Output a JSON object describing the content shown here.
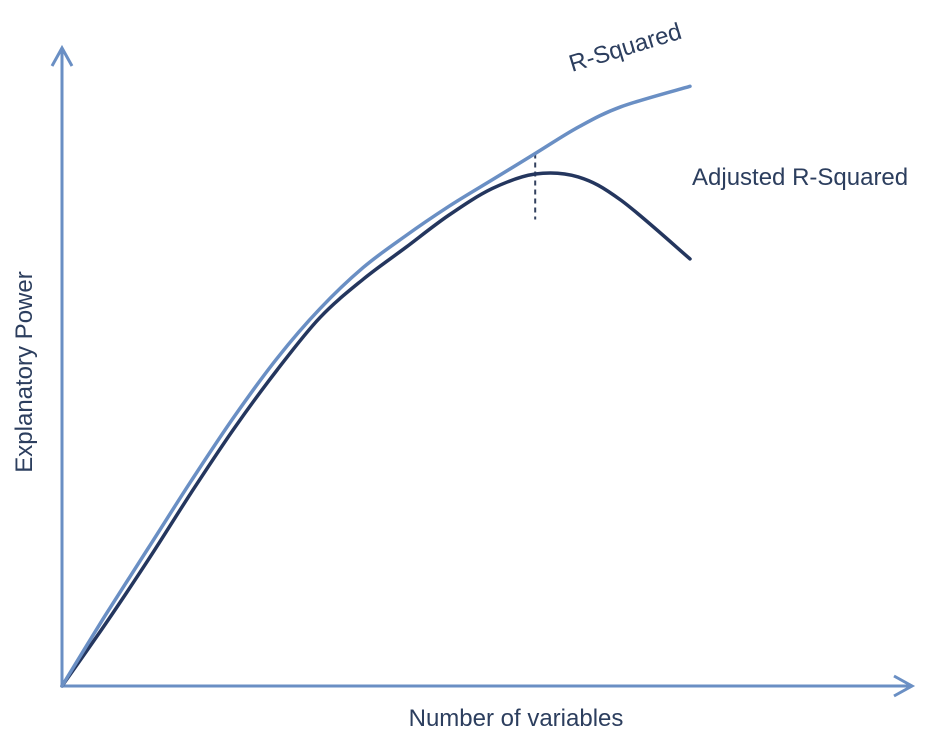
{
  "chart_data": {
    "type": "line",
    "title": "",
    "xlabel": "Number of variables",
    "ylabel": "Explanatory Power",
    "xlim": [
      0,
      10
    ],
    "ylim": [
      0,
      10
    ],
    "grid": false,
    "legend": "none",
    "marker_x": 5.5,
    "series": [
      {
        "name": "R-Squared",
        "color": "#6a8fc4",
        "x": [
          0,
          0.5,
          1,
          1.5,
          2,
          2.5,
          3,
          3.5,
          4,
          4.5,
          5,
          5.5,
          6,
          6.5,
          7.3
        ],
        "y": [
          0,
          1.2,
          2.35,
          3.5,
          4.6,
          5.6,
          6.45,
          7.15,
          7.7,
          8.2,
          8.65,
          9.1,
          9.55,
          9.9,
          10.25
        ]
      },
      {
        "name": "Adjusted R-Squared",
        "color": "#24365e",
        "x": [
          0,
          0.5,
          1,
          1.5,
          2,
          2.5,
          3,
          3.5,
          4,
          4.5,
          5,
          5.5,
          6,
          6.5,
          7.3
        ],
        "y": [
          0,
          1.05,
          2.15,
          3.3,
          4.4,
          5.4,
          6.3,
          6.95,
          7.5,
          8.05,
          8.5,
          8.75,
          8.7,
          8.3,
          7.3
        ]
      }
    ]
  }
}
